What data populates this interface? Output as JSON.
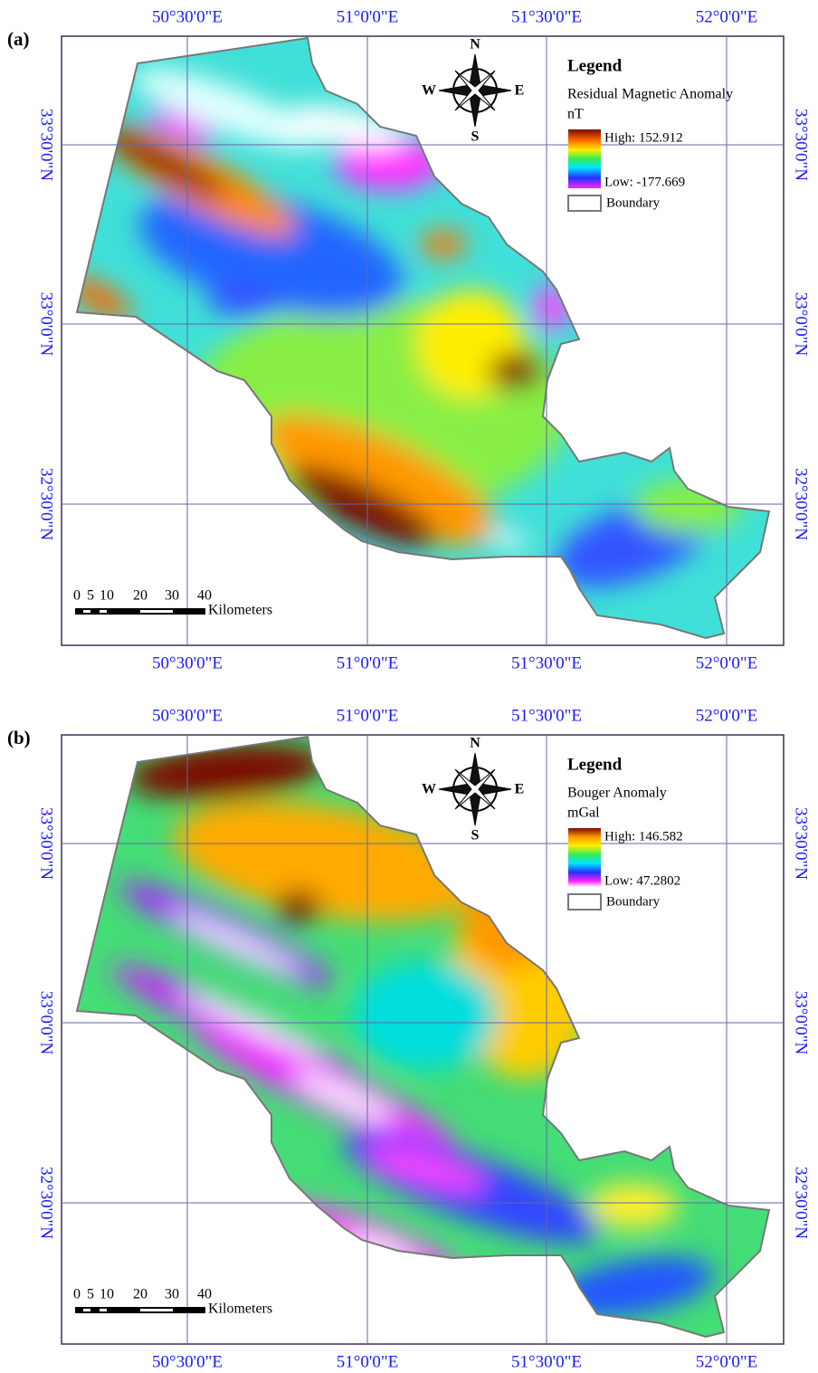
{
  "panels": [
    {
      "label": "(a)",
      "x_labels": [
        "50°30'0\"E",
        "51°0'0\"E",
        "51°30'0\"E",
        "52°0'0\"E"
      ],
      "y_labels": [
        "33°30'0\"N",
        "33°0'0\"N",
        "32°30'0\"N"
      ],
      "compass": {
        "n": "N",
        "s": "S",
        "e": "E",
        "w": "W"
      },
      "legend": {
        "title": "Legend",
        "layer": "Residual Magnetic Anomaly",
        "unit": "nT",
        "high": "High: 152.912",
        "low": "Low: -177.669",
        "boundary": "Boundary"
      },
      "scale": {
        "ticks": [
          "0",
          "5",
          "10",
          "20",
          "30",
          "40"
        ],
        "unit": "Kilometers"
      }
    },
    {
      "label": "(b)",
      "x_labels": [
        "50°30'0\"E",
        "51°0'0\"E",
        "51°30'0\"E",
        "52°0'0\"E"
      ],
      "y_labels": [
        "33°30'0\"N",
        "33°0'0\"N",
        "32°30'0\"N"
      ],
      "compass": {
        "n": "N",
        "s": "S",
        "e": "E",
        "w": "W"
      },
      "legend": {
        "title": "Legend",
        "layer": "Bouger Anomaly",
        "unit": "mGal",
        "high": "High: 146.582",
        "low": "Low: 47.2802",
        "boundary": "Boundary"
      },
      "scale": {
        "ticks": [
          "0",
          "5",
          "10",
          "20",
          "30",
          "40"
        ],
        "unit": "Kilometers"
      }
    }
  ]
}
